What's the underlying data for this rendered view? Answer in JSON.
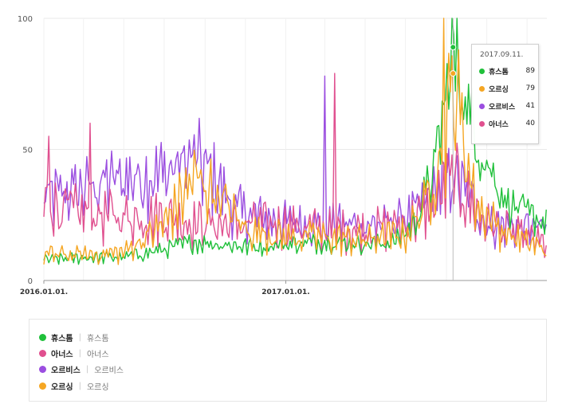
{
  "chart_data": {
    "type": "line",
    "x_start": "2016.01.01.",
    "x_end_approx": "2018.01.31.",
    "x_ticks": [
      "2016.01.01.",
      "2017.01.01."
    ],
    "y_ticks": [
      "0",
      "50",
      "100"
    ],
    "ylim": [
      0,
      100
    ],
    "grid": true,
    "series": [
      {
        "name": "휴스톰",
        "color": "#1fc03a",
        "keypoints": [
          [
            "2016.01.01.",
            8
          ],
          [
            "2016.03.01.",
            9
          ],
          [
            "2016.05.01.",
            9
          ],
          [
            "2016.07.01.",
            12
          ],
          [
            "2016.08.15.",
            15
          ],
          [
            "2016.10.01.",
            14
          ],
          [
            "2016.11.15.",
            13
          ],
          [
            "2017.01.01.",
            14
          ],
          [
            "2017.03.01.",
            15
          ],
          [
            "2017.05.01.",
            14
          ],
          [
            "2017.06.15.",
            15
          ],
          [
            "2017.07.15.",
            22
          ],
          [
            "2017.08.15.",
            45
          ],
          [
            "2017.09.11.",
            89
          ],
          [
            "2017.10.15.",
            55
          ],
          [
            "2017.12.01.",
            30
          ],
          [
            "2018.01.31.",
            22
          ]
        ]
      },
      {
        "name": "아너스",
        "color": "#e0508f",
        "keypoints": [
          [
            "2016.01.01.",
            30
          ],
          [
            "2016.03.01.",
            26
          ],
          [
            "2016.05.01.",
            25
          ],
          [
            "2016.07.01.",
            25
          ],
          [
            "2016.09.01.",
            22
          ],
          [
            "2016.11.01.",
            22
          ],
          [
            "2017.01.01.",
            22
          ],
          [
            "2017.03.01.",
            20
          ],
          [
            "2017.05.01.",
            20
          ],
          [
            "2017.07.01.",
            22
          ],
          [
            "2017.08.15.",
            30
          ],
          [
            "2017.09.11.",
            40
          ],
          [
            "2017.11.01.",
            22
          ],
          [
            "2018.01.31.",
            14
          ]
        ]
      },
      {
        "name": "오르비스",
        "color": "#9b4ee0",
        "keypoints": [
          [
            "2016.01.01.",
            32
          ],
          [
            "2016.03.01.",
            36
          ],
          [
            "2016.05.01.",
            40
          ],
          [
            "2016.07.01.",
            42
          ],
          [
            "2016.08.15.",
            48
          ],
          [
            "2016.09.15.",
            40
          ],
          [
            "2016.10.15.",
            28
          ],
          [
            "2016.12.01.",
            24
          ],
          [
            "2017.02.01.",
            22
          ],
          [
            "2017.04.01.",
            22
          ],
          [
            "2017.06.01.",
            22
          ],
          [
            "2017.07.15.",
            26
          ],
          [
            "2017.09.11.",
            41
          ],
          [
            "2017.11.01.",
            22
          ],
          [
            "2018.01.31.",
            20
          ]
        ]
      },
      {
        "name": "오르싱",
        "color": "#f5a623",
        "keypoints": [
          [
            "2016.01.01.",
            10
          ],
          [
            "2016.03.01.",
            10
          ],
          [
            "2016.05.01.",
            11
          ],
          [
            "2016.07.01.",
            22
          ],
          [
            "2016.08.15.",
            40
          ],
          [
            "2016.09.15.",
            35
          ],
          [
            "2016.11.01.",
            20
          ],
          [
            "2017.01.01.",
            17
          ],
          [
            "2017.03.01.",
            17
          ],
          [
            "2017.05.01.",
            16
          ],
          [
            "2017.07.01.",
            18
          ],
          [
            "2017.08.01.",
            30
          ],
          [
            "2017.09.01.",
            60
          ],
          [
            "2017.09.11.",
            79
          ],
          [
            "2017.10.15.",
            30
          ],
          [
            "2017.12.01.",
            18
          ],
          [
            "2018.01.31.",
            12
          ]
        ]
      }
    ],
    "spikes": [
      {
        "series": "오르싱",
        "date": "2017.08.27.",
        "value": 100
      },
      {
        "series": "아너스",
        "date": "2017.03.15.",
        "value": 79
      },
      {
        "series": "오르비스",
        "date": "2017.02.28.",
        "value": 78
      },
      {
        "series": "아너스",
        "date": "2016.01.08.",
        "value": 55
      },
      {
        "series": "아너스",
        "date": "2016.03.10.",
        "value": 60
      }
    ],
    "tooltip": {
      "date": "2017.09.11.",
      "rows": [
        {
          "name": "휴스톰",
          "value": 89,
          "color": "#1fc03a"
        },
        {
          "name": "오르싱",
          "value": 79,
          "color": "#f5a623"
        },
        {
          "name": "오르비스",
          "value": 41,
          "color": "#9b4ee0"
        },
        {
          "name": "아너스",
          "value": 40,
          "color": "#e0508f"
        }
      ]
    }
  },
  "legend": [
    {
      "name": "휴스톰",
      "alias": "휴스톰",
      "color": "#1fc03a"
    },
    {
      "name": "아너스",
      "alias": "아너스",
      "color": "#e0508f"
    },
    {
      "name": "오르비스",
      "alias": "오르비스",
      "color": "#9b4ee0"
    },
    {
      "name": "오르싱",
      "alias": "오르싱",
      "color": "#f5a623"
    }
  ]
}
